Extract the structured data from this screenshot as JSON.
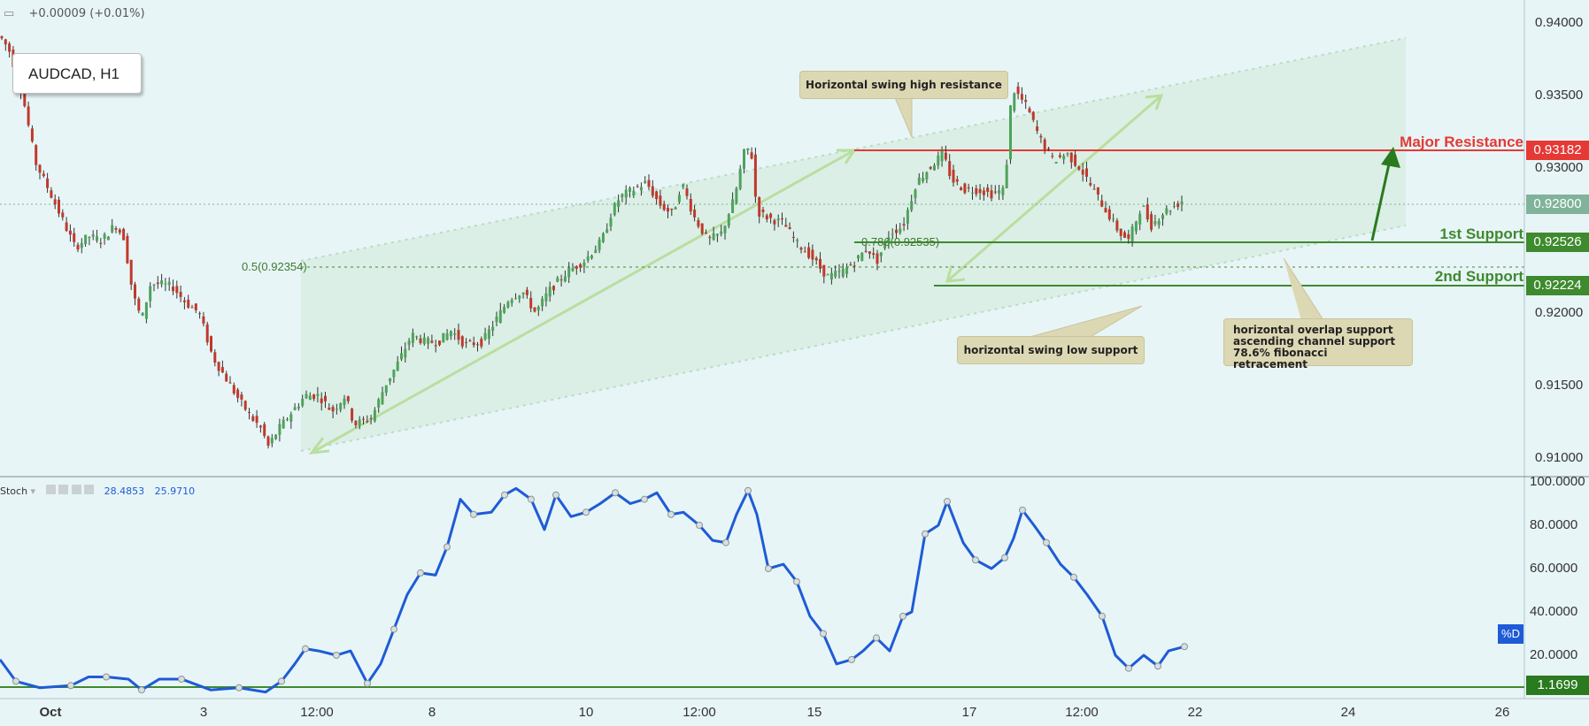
{
  "header": {
    "change_text": "+0.00009 (+0.01%)",
    "symbol": "AUDCAD, H1"
  },
  "annotations": {
    "swing_high": "Horizontal swing high resistance",
    "swing_low": "horizontal swing low support",
    "support_note_1": "horizontal overlap support",
    "support_note_2": "ascending channel support",
    "support_note_3": "78.6% fibonacci retracement",
    "fib_05": "0.5(0.92354)",
    "fib_0786": "0.786(0.92535)"
  },
  "levels": {
    "major_resistance": {
      "label": "Major Resistance",
      "value": "0.93182",
      "color": "#e53935"
    },
    "first_support": {
      "label": "1st Support",
      "value": "0.92526",
      "color": "#3e8a2e"
    },
    "second_support": {
      "label": "2nd Support",
      "value": "0.92224",
      "color": "#3e8a2e"
    },
    "last_price": {
      "value": "0.92800",
      "color": "#7fb39a"
    }
  },
  "price_axis": [
    "0.94000",
    "0.93500",
    "0.93000",
    "0.92500",
    "0.92000",
    "0.91500",
    "0.91000"
  ],
  "stoch": {
    "name": "Stoch",
    "value_k": "28.4853",
    "value_d": "25.9710",
    "d_tag": "%D",
    "level_value": "1.1699",
    "axis": [
      "100.0000",
      "80.0000",
      "60.0000",
      "40.0000",
      "20.0000"
    ]
  },
  "time_axis": [
    "Oct",
    "3",
    "12:00",
    "8",
    "10",
    "12:00",
    "15",
    "17",
    "12:00",
    "22",
    "24",
    "26"
  ],
  "colors": {
    "bull": "#4ea35a",
    "bear": "#c0392b",
    "stoch_line": "#1e5bd6",
    "channel": "#cfe9d9",
    "green_line": "#3e8a2e",
    "red_line": "#e53935"
  },
  "chart_data": {
    "type": "line",
    "title": "AUDCAD, H1",
    "price_ylim": [
      0.9087,
      0.9416
    ],
    "price_path": [
      [
        0,
        0.9391
      ],
      [
        10,
        0.9382
      ],
      [
        25,
        0.9352
      ],
      [
        40,
        0.9304
      ],
      [
        55,
        0.9285
      ],
      [
        70,
        0.9265
      ],
      [
        85,
        0.9245
      ],
      [
        100,
        0.9253
      ],
      [
        115,
        0.925
      ],
      [
        130,
        0.9261
      ],
      [
        140,
        0.9252
      ],
      [
        150,
        0.9213
      ],
      [
        160,
        0.9195
      ],
      [
        170,
        0.922
      ],
      [
        180,
        0.922
      ],
      [
        195,
        0.9218
      ],
      [
        210,
        0.9207
      ],
      [
        225,
        0.92
      ],
      [
        240,
        0.917
      ],
      [
        255,
        0.9155
      ],
      [
        270,
        0.914
      ],
      [
        285,
        0.9127
      ],
      [
        295,
        0.912
      ],
      [
        303,
        0.9108
      ],
      [
        315,
        0.912
      ],
      [
        330,
        0.9132
      ],
      [
        345,
        0.9143
      ],
      [
        360,
        0.9143
      ],
      [
        375,
        0.9132
      ],
      [
        390,
        0.9143
      ],
      [
        400,
        0.9123
      ],
      [
        420,
        0.9128
      ],
      [
        435,
        0.915
      ],
      [
        450,
        0.9166
      ],
      [
        465,
        0.9185
      ],
      [
        480,
        0.918
      ],
      [
        495,
        0.918
      ],
      [
        510,
        0.9188
      ],
      [
        525,
        0.9178
      ],
      [
        545,
        0.918
      ],
      [
        560,
        0.9195
      ],
      [
        575,
        0.921
      ],
      [
        590,
        0.9215
      ],
      [
        605,
        0.92
      ],
      [
        620,
        0.9215
      ],
      [
        640,
        0.9228
      ],
      [
        660,
        0.9236
      ],
      [
        680,
        0.925
      ],
      [
        690,
        0.9268
      ],
      [
        700,
        0.928
      ],
      [
        715,
        0.9285
      ],
      [
        730,
        0.929
      ],
      [
        745,
        0.9275
      ],
      [
        760,
        0.9268
      ],
      [
        770,
        0.929
      ],
      [
        785,
        0.9265
      ],
      [
        800,
        0.925
      ],
      [
        815,
        0.9255
      ],
      [
        830,
        0.928
      ],
      [
        840,
        0.931
      ],
      [
        848,
        0.9315
      ],
      [
        855,
        0.927
      ],
      [
        870,
        0.9265
      ],
      [
        885,
        0.9262
      ],
      [
        900,
        0.9248
      ],
      [
        915,
        0.924
      ],
      [
        925,
        0.9232
      ],
      [
        935,
        0.9225
      ],
      [
        950,
        0.9228
      ],
      [
        965,
        0.9235
      ],
      [
        980,
        0.9245
      ],
      [
        990,
        0.9235
      ],
      [
        1005,
        0.9255
      ],
      [
        1020,
        0.926
      ],
      [
        1035,
        0.929
      ],
      [
        1050,
        0.93
      ],
      [
        1065,
        0.931
      ],
      [
        1075,
        0.9292
      ],
      [
        1090,
        0.9285
      ],
      [
        1105,
        0.9285
      ],
      [
        1120,
        0.9282
      ],
      [
        1135,
        0.9285
      ],
      [
        1143,
        0.9355
      ],
      [
        1148,
        0.9352
      ],
      [
        1160,
        0.9342
      ],
      [
        1175,
        0.932
      ],
      [
        1190,
        0.9305
      ],
      [
        1205,
        0.931
      ],
      [
        1220,
        0.93
      ],
      [
        1235,
        0.9285
      ],
      [
        1250,
        0.927
      ],
      [
        1265,
        0.9255
      ],
      [
        1275,
        0.925
      ],
      [
        1290,
        0.9275
      ],
      [
        1300,
        0.926
      ],
      [
        1315,
        0.927
      ],
      [
        1330,
        0.9275
      ],
      [
        1340,
        0.928
      ]
    ],
    "stoch_ylim": [
      0,
      100
    ],
    "stoch_path": [
      [
        0,
        18
      ],
      [
        18,
        8
      ],
      [
        45,
        5
      ],
      [
        80,
        6
      ],
      [
        100,
        10
      ],
      [
        120,
        10
      ],
      [
        145,
        9
      ],
      [
        160,
        4
      ],
      [
        180,
        9
      ],
      [
        205,
        9
      ],
      [
        238,
        4
      ],
      [
        270,
        5
      ],
      [
        300,
        3
      ],
      [
        318,
        8
      ],
      [
        333,
        16
      ],
      [
        345,
        23
      ],
      [
        360,
        22
      ],
      [
        380,
        20
      ],
      [
        396,
        22
      ],
      [
        415,
        7
      ],
      [
        430,
        16
      ],
      [
        445,
        32
      ],
      [
        460,
        48
      ],
      [
        475,
        58
      ],
      [
        492,
        57
      ],
      [
        505,
        70
      ],
      [
        520,
        92
      ],
      [
        535,
        85
      ],
      [
        555,
        86
      ],
      [
        570,
        94
      ],
      [
        583,
        97
      ],
      [
        600,
        92
      ],
      [
        615,
        78
      ],
      [
        628,
        94
      ],
      [
        645,
        84
      ],
      [
        662,
        86
      ],
      [
        678,
        90
      ],
      [
        695,
        95
      ],
      [
        712,
        90
      ],
      [
        728,
        92
      ],
      [
        742,
        95
      ],
      [
        758,
        85
      ],
      [
        772,
        86
      ],
      [
        790,
        80
      ],
      [
        805,
        73
      ],
      [
        820,
        72
      ],
      [
        832,
        85
      ],
      [
        845,
        96
      ],
      [
        855,
        85
      ],
      [
        868,
        60
      ],
      [
        885,
        62
      ],
      [
        900,
        54
      ],
      [
        915,
        38
      ],
      [
        930,
        30
      ],
      [
        945,
        16
      ],
      [
        962,
        18
      ],
      [
        975,
        22
      ],
      [
        990,
        28
      ],
      [
        1005,
        22
      ],
      [
        1020,
        38
      ],
      [
        1030,
        40
      ],
      [
        1045,
        76
      ],
      [
        1060,
        80
      ],
      [
        1070,
        91
      ],
      [
        1088,
        72
      ],
      [
        1102,
        64
      ],
      [
        1120,
        60
      ],
      [
        1135,
        65
      ],
      [
        1145,
        74
      ],
      [
        1155,
        87
      ],
      [
        1168,
        80
      ],
      [
        1182,
        72
      ],
      [
        1198,
        62
      ],
      [
        1213,
        56
      ],
      [
        1228,
        48
      ],
      [
        1245,
        38
      ],
      [
        1260,
        20
      ],
      [
        1275,
        14
      ],
      [
        1292,
        20
      ],
      [
        1308,
        15
      ],
      [
        1320,
        22
      ],
      [
        1338,
        24
      ]
    ]
  }
}
